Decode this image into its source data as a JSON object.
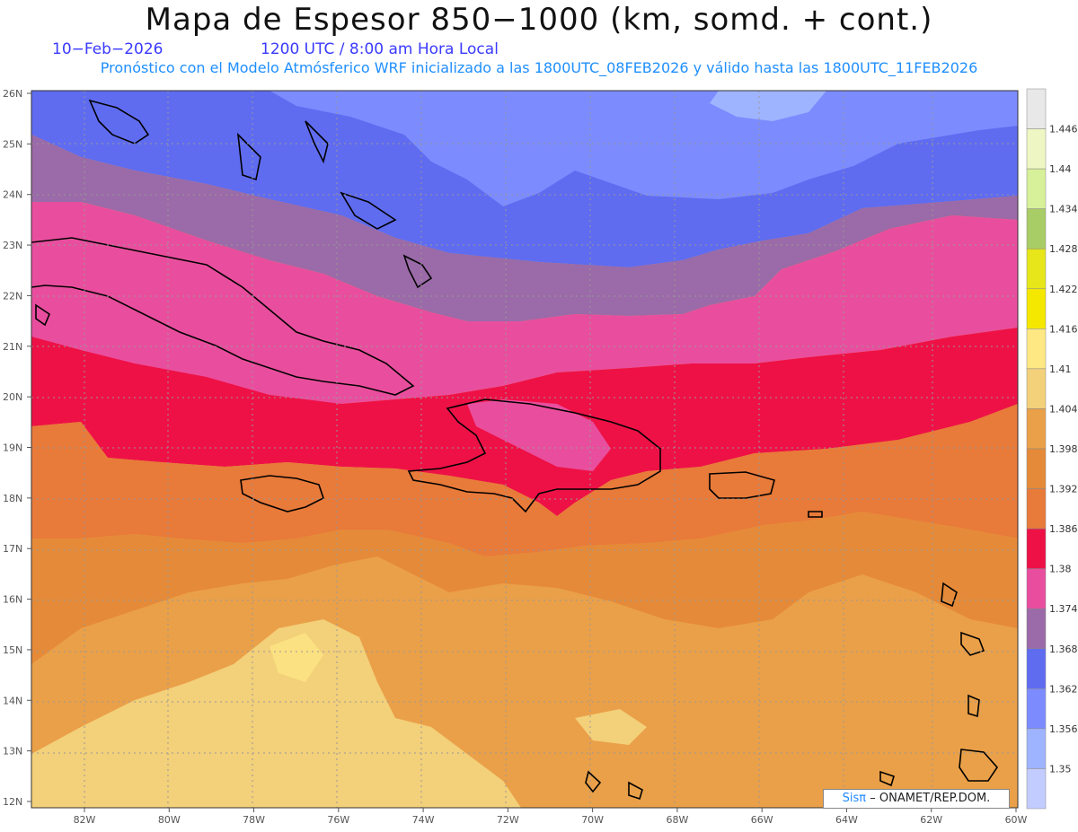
{
  "header": {
    "title": "Mapa de Espesor 850−1000 (km, somd. + cont.)",
    "date": "10−Feb−2026",
    "valid_time": "1200 UTC / 8:00 am Hora Local",
    "description": "Pronóstico con el Modelo Atmósferico WRF inicializado a las 1800UTC_08FEB2026 y válido hasta las  1800UTC_11FEB2026"
  },
  "axes": {
    "lat_labels": [
      "26N",
      "25N",
      "24N",
      "23N",
      "22N",
      "21N",
      "20N",
      "19N",
      "18N",
      "17N",
      "16N",
      "15N",
      "14N",
      "13N",
      "12N"
    ],
    "lon_labels": [
      "82W",
      "80W",
      "78W",
      "76W",
      "74W",
      "72W",
      "70W",
      "68W",
      "66W",
      "64W",
      "62W",
      "60W"
    ]
  },
  "legend": {
    "values": [
      "1.446",
      "1.44",
      "1.434",
      "1.428",
      "1.422",
      "1.416",
      "1.41",
      "1.404",
      "1.398",
      "1.392",
      "1.386",
      "1.38",
      "1.374",
      "1.368",
      "1.362",
      "1.356",
      "1.35"
    ],
    "colors": [
      "#e8e8e8",
      "#eef7c4",
      "#d7f09a",
      "#a8cc66",
      "#e6e61a",
      "#f5e800",
      "#fde884",
      "#f3d07a",
      "#eaa048",
      "#e58a38",
      "#e87a3a",
      "#ee1146",
      "#e94e9e",
      "#9b6aa8",
      "#5f6cf0",
      "#7c8cff",
      "#9fb4ff",
      "#c3ccff"
    ]
  },
  "credit": {
    "brand": "Sisπ",
    "text": "– ONAMET/REP.DOM."
  }
}
